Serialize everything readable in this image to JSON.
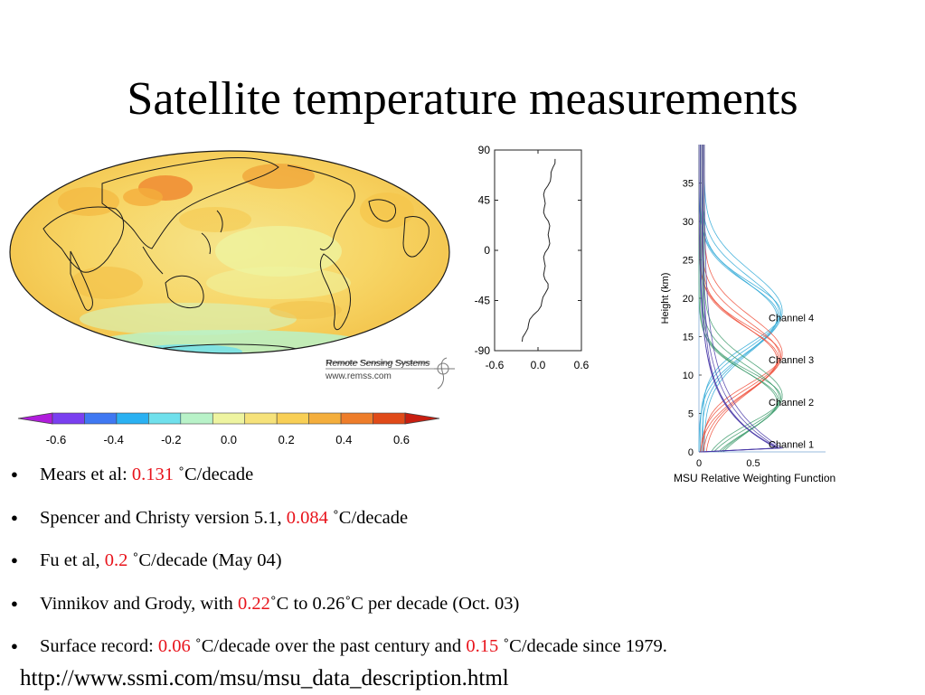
{
  "slide": {
    "title": "Satellite temperature measurements"
  },
  "globe_map": {
    "credit_line1": "Remote Sensing Systems",
    "credit_line2": "www.remss.com"
  },
  "colorbar": {
    "tick_labels": [
      "-0.6",
      "-0.4",
      "-0.2",
      "0.0",
      "0.2",
      "0.4",
      "0.6"
    ],
    "colors": [
      "#b01cdc",
      "#7a3ff0",
      "#3f78f2",
      "#2ab1f2",
      "#6fe0ec",
      "#b8f2c8",
      "#eef4a0",
      "#f6e27a",
      "#f8cf55",
      "#f4ae3c",
      "#ee7d2a",
      "#e04a18",
      "#c81e10"
    ]
  },
  "lat_profile_chart": {
    "type": "line",
    "x_ticks": [
      "-0.6",
      "0.0",
      "0.6"
    ],
    "y_ticks": [
      "90",
      "45",
      "0",
      "-45",
      "-90"
    ],
    "xlim": [
      -0.6,
      0.6
    ],
    "ylim": [
      -90,
      90
    ]
  },
  "weighting_chart": {
    "type": "line",
    "title": "MSU Relative Weighting Function",
    "ylabel": "Height (km)",
    "y_ticks": [
      "0",
      "5",
      "10",
      "15",
      "20",
      "25",
      "30",
      "35"
    ],
    "x_ticks": [
      "0",
      "0.5"
    ],
    "channels": [
      {
        "label": "Channel 4",
        "color": "#2aa7d6",
        "peak_km": 17.5
      },
      {
        "label": "Channel 3",
        "color": "#ee4a35",
        "peak_km": 12.0
      },
      {
        "label": "Channel 2",
        "color": "#3a9a6a",
        "peak_km": 6.5
      },
      {
        "label": "Channel 1",
        "color": "#4a3aa8",
        "peak_km": 1.0
      }
    ]
  },
  "bullets": [
    {
      "pre": "Mears et al: ",
      "value": "0.131",
      "post": " ˚C/decade"
    },
    {
      "pre": "Spencer and Christy version 5.1, ",
      "value": "0.084",
      "post": " ˚C/decade"
    },
    {
      "pre": "Fu et al, ",
      "value": "0.2",
      "post": " ˚C/decade (May 04)"
    },
    {
      "pre": "Vinnikov and Grody, with ",
      "value": "0.22",
      "post": "˚C to 0.26˚C per decade (Oct. 03)"
    },
    {
      "pre": "Surface record: ",
      "value": "0.06",
      "post": " ˚C/decade over the past century and ",
      "value2": "0.15",
      "post2": " ˚C/decade since 1979."
    }
  ],
  "bullet_glyph": "●",
  "footer_url": "http://www.ssmi.com/msu/msu_data_description.html"
}
